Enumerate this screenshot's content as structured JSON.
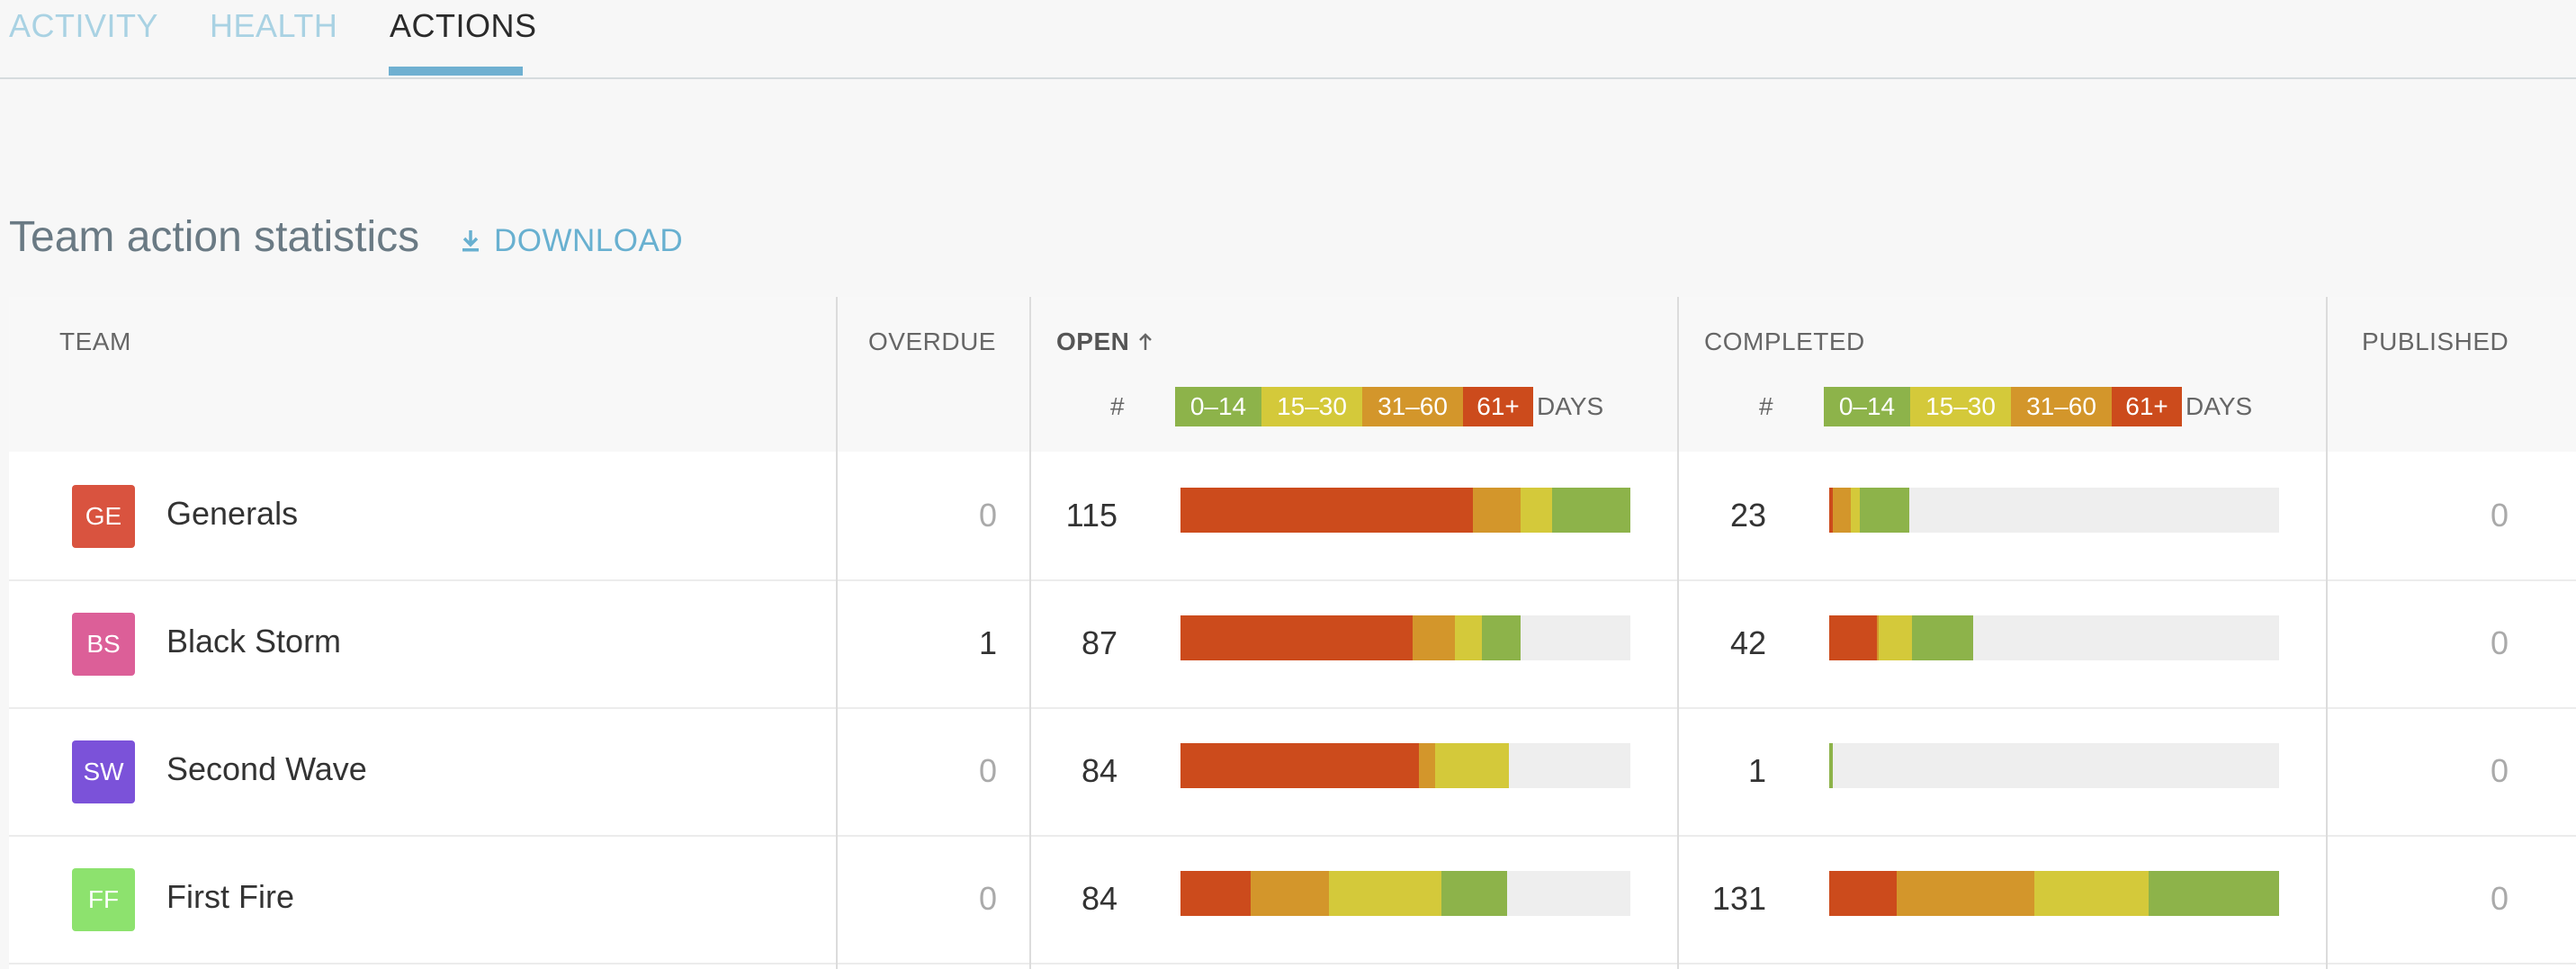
{
  "tabs": [
    {
      "label": "ACTIVITY",
      "active": false
    },
    {
      "label": "HEALTH",
      "active": false
    },
    {
      "label": "ACTIONS",
      "active": true
    }
  ],
  "section": {
    "title": "Team action statistics",
    "download_label": "DOWNLOAD"
  },
  "table": {
    "headers": {
      "team": "TEAM",
      "overdue": "OVERDUE",
      "open": "OPEN",
      "completed": "COMPLETED",
      "published": "PUBLISHED",
      "hash": "#",
      "days": "DAYS"
    },
    "legend": [
      {
        "label": "0–14",
        "color": "#8db34a"
      },
      {
        "label": "15–30",
        "color": "#d4c93a"
      },
      {
        "label": "31–60",
        "color": "#d3962b"
      },
      {
        "label": "61+",
        "color": "#cc4b1c"
      }
    ],
    "empty_color": "#eeeeee",
    "rows": [
      {
        "initials": "GE",
        "avatar_color": "#d9533f",
        "name": "Generals",
        "overdue": "0",
        "open": "115",
        "completed": "23",
        "published": "0",
        "open_dist": [
          0.175,
          0.07,
          0.105,
          0.65
        ],
        "completed_dist": [
          0.11,
          0.02,
          0.04,
          0.008
        ]
      },
      {
        "initials": "BS",
        "avatar_color": "#dc5f98",
        "name": "Black Storm",
        "overdue": "1",
        "open": "87",
        "completed": "42",
        "published": "0",
        "open_dist": [
          0.085,
          0.06,
          0.095,
          0.515
        ],
        "completed_dist": [
          0.135,
          0.075,
          0.004,
          0.105
        ]
      },
      {
        "initials": "SW",
        "avatar_color": "#7b52d9",
        "name": "Second Wave",
        "overdue": "0",
        "open": "84",
        "completed": "1",
        "published": "0",
        "open_dist": [
          0.0,
          0.165,
          0.035,
          0.53
        ],
        "completed_dist": [
          0.008,
          0.0,
          0.0,
          0.0
        ]
      },
      {
        "initials": "FF",
        "avatar_color": "#8de26e",
        "name": "First Fire",
        "overdue": "0",
        "open": "84",
        "completed": "131",
        "published": "0",
        "open_dist": [
          0.145,
          0.25,
          0.175,
          0.155
        ],
        "completed_dist": [
          0.29,
          0.255,
          0.305,
          0.15
        ]
      }
    ]
  }
}
